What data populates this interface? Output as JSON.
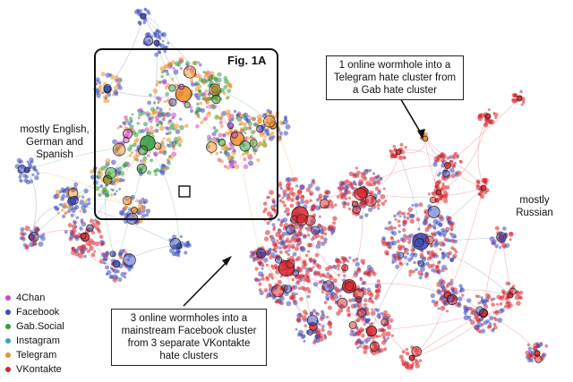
{
  "figure": {
    "fig_label": "Fig. 1A",
    "region_left": "mostly English, German and Spanish",
    "region_right": "mostly Russian",
    "annotation_top": "1 online wormhole into a Telegram hate cluster from a Gab hate cluster",
    "annotation_bottom": "3 online wormholes into a mainstream Facebook cluster from 3 separate VKontakte hate clusters"
  },
  "legend": {
    "items": [
      {
        "label": "4Chan",
        "color": "#d63fd0"
      },
      {
        "label": "Facebook",
        "color": "#3b4cc0"
      },
      {
        "label": "Gab.Social",
        "color": "#2f9e3a"
      },
      {
        "label": "Instagram",
        "color": "#3aa6b9"
      },
      {
        "label": "Telegram",
        "color": "#f0902a"
      },
      {
        "label": "VKontakte",
        "color": "#d8242a"
      }
    ]
  }
}
